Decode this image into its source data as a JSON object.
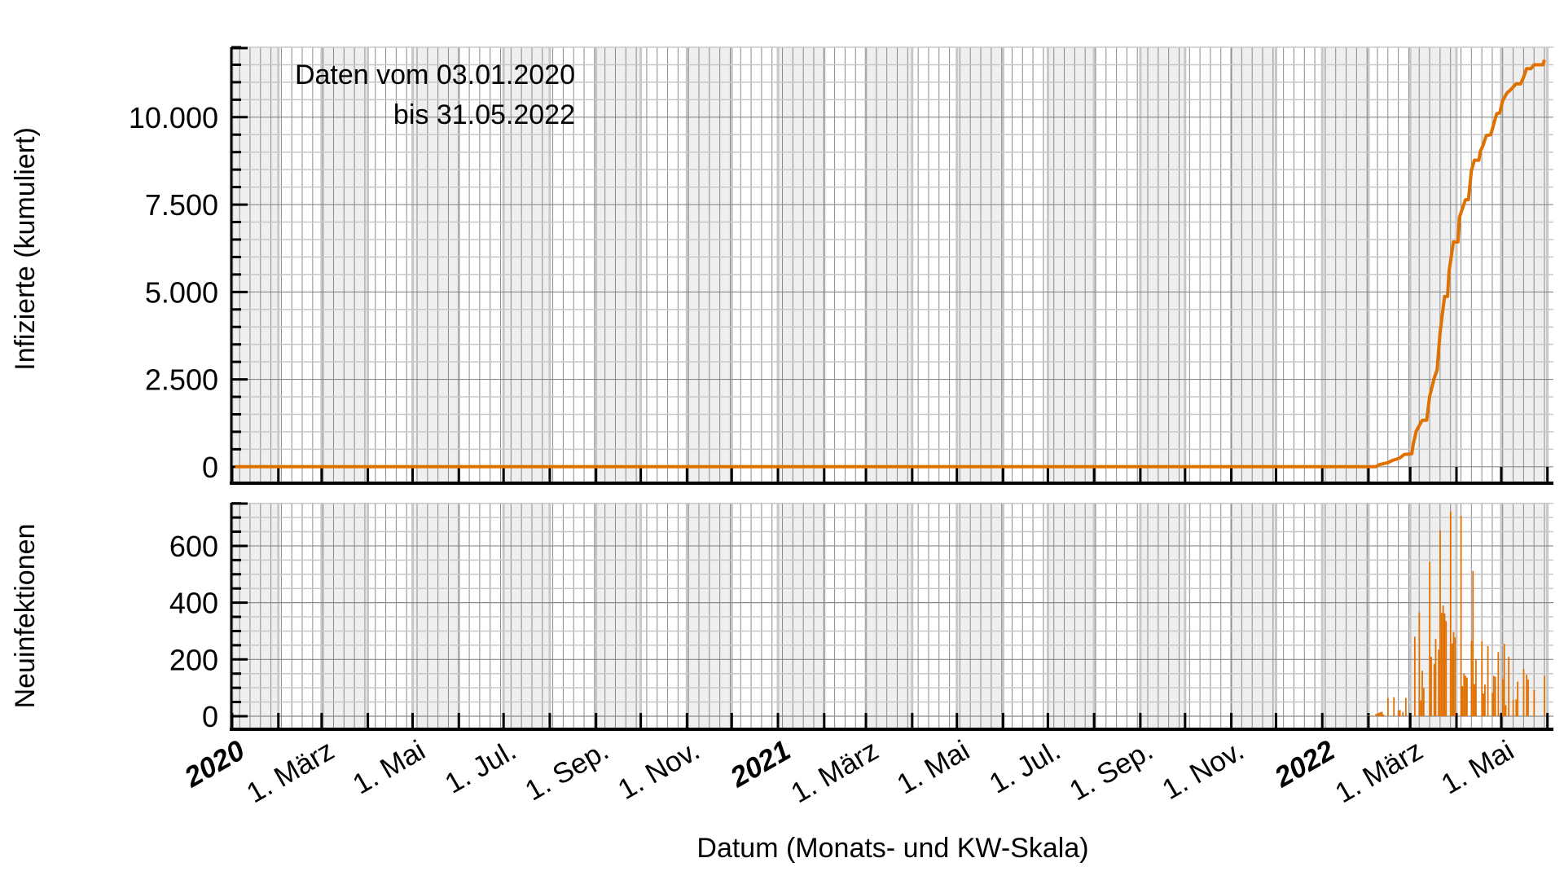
{
  "chart_data": [
    {
      "type": "line",
      "ylabel": "Infizierte (kumuliert)",
      "annotation": [
        "Daten vom 03.01.2020",
        "bis 31.05.2022"
      ],
      "xlim": [
        "2020-01-01",
        "2022-06-05"
      ],
      "ylim": [
        -470,
        12000
      ],
      "yticks": [
        0,
        2500,
        5000,
        7500,
        10000
      ],
      "ytick_labels": [
        "0",
        "2.500",
        "5.000",
        "7.500",
        "10.000"
      ],
      "yminor_step": 500,
      "grid": true,
      "color": "#e07000",
      "series": [
        {
          "points": [
            [
              "2020-01-03",
              0
            ],
            [
              "2022-02-06",
              0
            ],
            [
              "2022-02-08",
              60
            ],
            [
              "2022-02-14",
              117
            ],
            [
              "2022-02-17",
              180
            ],
            [
              "2022-02-22",
              250
            ],
            [
              "2022-02-25",
              350
            ],
            [
              "2022-03-02",
              370
            ],
            [
              "2022-03-03",
              640
            ],
            [
              "2022-03-05",
              1020
            ],
            [
              "2022-03-09",
              1330
            ],
            [
              "2022-03-12",
              1330
            ],
            [
              "2022-03-14",
              2020
            ],
            [
              "2022-03-15",
              2180
            ],
            [
              "2022-03-17",
              2520
            ],
            [
              "2022-03-19",
              2770
            ],
            [
              "2022-03-21",
              3850
            ],
            [
              "2022-03-24",
              4870
            ],
            [
              "2022-03-26",
              4870
            ],
            [
              "2022-03-27",
              5600
            ],
            [
              "2022-03-30",
              6430
            ],
            [
              "2022-04-02",
              6430
            ],
            [
              "2022-04-03",
              7140
            ],
            [
              "2022-04-07",
              7640
            ],
            [
              "2022-04-09",
              7640
            ],
            [
              "2022-04-11",
              8470
            ],
            [
              "2022-04-13",
              8770
            ],
            [
              "2022-04-16",
              8770
            ],
            [
              "2022-04-17",
              9020
            ],
            [
              "2022-04-19",
              9220
            ],
            [
              "2022-04-21",
              9475
            ],
            [
              "2022-04-24",
              9500
            ],
            [
              "2022-04-26",
              9810
            ],
            [
              "2022-04-28",
              10100
            ],
            [
              "2022-04-30",
              10120
            ],
            [
              "2022-05-02",
              10475
            ],
            [
              "2022-05-05",
              10700
            ],
            [
              "2022-05-07",
              10770
            ],
            [
              "2022-05-11",
              10950
            ],
            [
              "2022-05-14",
              10950
            ],
            [
              "2022-05-16",
              11140
            ],
            [
              "2022-05-18",
              11390
            ],
            [
              "2022-05-21",
              11390
            ],
            [
              "2022-05-23",
              11500
            ],
            [
              "2022-05-29",
              11500
            ],
            [
              "2022-05-30",
              11640
            ]
          ]
        }
      ]
    },
    {
      "type": "bar",
      "ylabel": "Neuinfektionen",
      "xlabel": "Datum (Monats- und KW-Skala)",
      "xlim": [
        "2020-01-01",
        "2022-06-05"
      ],
      "ylim": [
        -46,
        752
      ],
      "yticks": [
        0,
        200,
        400,
        600
      ],
      "ytick_labels": [
        "0",
        "200",
        "400",
        "600"
      ],
      "yminor_step": 50,
      "grid": true,
      "color": "#e07000",
      "x_tick_labels": [
        {
          "date": "2020-01-01",
          "label": "2020",
          "bold": true
        },
        {
          "date": "2020-03-01",
          "label": "1. März"
        },
        {
          "date": "2020-05-01",
          "label": "1. Mai"
        },
        {
          "date": "2020-07-01",
          "label": "1. Jul."
        },
        {
          "date": "2020-09-01",
          "label": "1. Sep."
        },
        {
          "date": "2020-11-01",
          "label": "1. Nov."
        },
        {
          "date": "2021-01-01",
          "label": "2021",
          "bold": true
        },
        {
          "date": "2021-03-01",
          "label": "1. März"
        },
        {
          "date": "2021-05-01",
          "label": "1. Mai"
        },
        {
          "date": "2021-07-01",
          "label": "1. Jul."
        },
        {
          "date": "2021-09-01",
          "label": "1. Sep."
        },
        {
          "date": "2021-11-01",
          "label": "1. Nov."
        },
        {
          "date": "2022-01-01",
          "label": "2022",
          "bold": true
        },
        {
          "date": "2022-03-01",
          "label": "1. März"
        },
        {
          "date": "2022-05-01",
          "label": "1. Mai"
        }
      ],
      "bars": [
        [
          "2022-02-01",
          3
        ],
        [
          "2022-02-03",
          2
        ],
        [
          "2022-02-06",
          8
        ],
        [
          "2022-02-07",
          10
        ],
        [
          "2022-02-08",
          12
        ],
        [
          "2022-02-09",
          14
        ],
        [
          "2022-02-10",
          16
        ],
        [
          "2022-02-11",
          6
        ],
        [
          "2022-02-14",
          65
        ],
        [
          "2022-02-18",
          67
        ],
        [
          "2022-02-21",
          20
        ],
        [
          "2022-02-22",
          22
        ],
        [
          "2022-02-24",
          15
        ],
        [
          "2022-02-26",
          65
        ],
        [
          "2022-03-04",
          280
        ],
        [
          "2022-03-07",
          366
        ],
        [
          "2022-03-08",
          56
        ],
        [
          "2022-03-09",
          160
        ],
        [
          "2022-03-10",
          99
        ],
        [
          "2022-03-14",
          544
        ],
        [
          "2022-03-15",
          209
        ],
        [
          "2022-03-17",
          184
        ],
        [
          "2022-03-18",
          272
        ],
        [
          "2022-03-20",
          235
        ],
        [
          "2022-03-21",
          655
        ],
        [
          "2022-03-22",
          365
        ],
        [
          "2022-03-23",
          390
        ],
        [
          "2022-03-24",
          362
        ],
        [
          "2022-03-25",
          335
        ],
        [
          "2022-03-28",
          721
        ],
        [
          "2022-03-29",
          256
        ],
        [
          "2022-03-30",
          296
        ],
        [
          "2022-03-31",
          278
        ],
        [
          "2022-04-04",
          706
        ],
        [
          "2022-04-05",
          106
        ],
        [
          "2022-04-06",
          150
        ],
        [
          "2022-04-07",
          142
        ],
        [
          "2022-04-08",
          136
        ],
        [
          "2022-04-11",
          265
        ],
        [
          "2022-04-12",
          512
        ],
        [
          "2022-04-13",
          113
        ],
        [
          "2022-04-14",
          201
        ],
        [
          "2022-04-18",
          264
        ],
        [
          "2022-04-19",
          80
        ],
        [
          "2022-04-20",
          112
        ],
        [
          "2022-04-22",
          247
        ],
        [
          "2022-04-25",
          83
        ],
        [
          "2022-04-26",
          142
        ],
        [
          "2022-04-27",
          139
        ],
        [
          "2022-04-29",
          226
        ],
        [
          "2022-05-02",
          131
        ],
        [
          "2022-05-03",
          255
        ],
        [
          "2022-05-04",
          39
        ],
        [
          "2022-05-06",
          209
        ],
        [
          "2022-05-09",
          59
        ],
        [
          "2022-05-11",
          59
        ],
        [
          "2022-05-12",
          122
        ],
        [
          "2022-05-16",
          166
        ],
        [
          "2022-05-18",
          146
        ],
        [
          "2022-05-19",
          129
        ],
        [
          "2022-05-23",
          92
        ],
        [
          "2022-05-30",
          143
        ]
      ]
    }
  ],
  "style": {
    "shaded_months": [
      1,
      3,
      5,
      7,
      9,
      11
    ],
    "shade_color": "#efefef",
    "grid_major_color": "#8a8a8a",
    "grid_minor_color": "#c8c8c8",
    "axis_color": "#000000"
  }
}
